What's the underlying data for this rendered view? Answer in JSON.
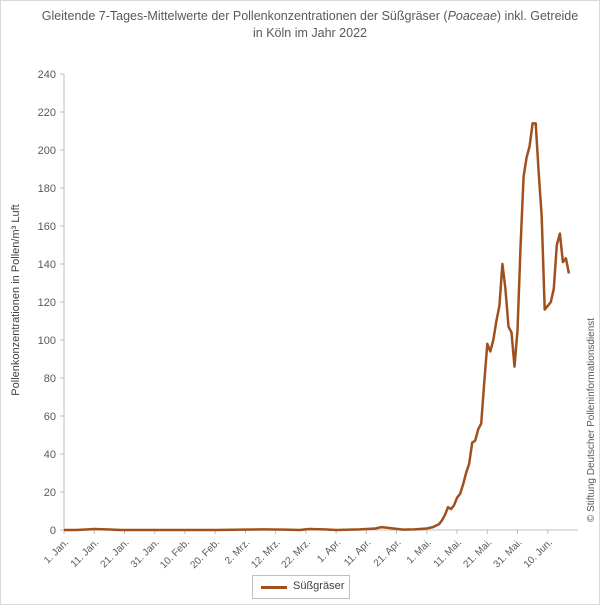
{
  "chart_data": {
    "type": "line",
    "title_line1": "Gleitende 7-Tages-Mittelwerte der Pollenkonzentrationen der Süßgräser (",
    "title_italic": "Poaceae",
    "title_line1_end": ") inkl. Getreide",
    "title_line2": "in Köln im Jahr 2022",
    "ylabel": "Pollenkonzentrationen in Pollen/m³ Luft",
    "credit": "© Stiftung Deutscher Polleninformationsdienst",
    "ylim": [
      0,
      240
    ],
    "yticks": [
      0,
      20,
      40,
      60,
      80,
      100,
      120,
      140,
      160,
      180,
      200,
      220,
      240
    ],
    "xlim": [
      "2022-01-01",
      "2022-06-20"
    ],
    "xticks": [
      {
        "date": "2022-01-01",
        "label": "1. Jan."
      },
      {
        "date": "2022-01-11",
        "label": "11. Jan."
      },
      {
        "date": "2022-01-21",
        "label": "21. Jan."
      },
      {
        "date": "2022-01-31",
        "label": "31. Jan."
      },
      {
        "date": "2022-02-10",
        "label": "10. Feb."
      },
      {
        "date": "2022-02-20",
        "label": "20. Feb."
      },
      {
        "date": "2022-03-02",
        "label": "2. Mrz."
      },
      {
        "date": "2022-03-12",
        "label": "12. Mrz."
      },
      {
        "date": "2022-03-22",
        "label": "22. Mrz."
      },
      {
        "date": "2022-04-01",
        "label": "1. Apr."
      },
      {
        "date": "2022-04-11",
        "label": "11. Apr."
      },
      {
        "date": "2022-04-21",
        "label": "21. Apr."
      },
      {
        "date": "2022-05-01",
        "label": "1. Mai."
      },
      {
        "date": "2022-05-11",
        "label": "11. Mai."
      },
      {
        "date": "2022-05-21",
        "label": "21. Mai."
      },
      {
        "date": "2022-05-31",
        "label": "31. Mai."
      },
      {
        "date": "2022-06-10",
        "label": "10. Jun."
      }
    ],
    "grid": false,
    "legend_position": "bottom-center",
    "series": [
      {
        "name": "Süßgräser",
        "color": "#a0501d",
        "points": [
          [
            "2022-01-01",
            0
          ],
          [
            "2022-01-05",
            0
          ],
          [
            "2022-01-09",
            0.3
          ],
          [
            "2022-01-11",
            0.5
          ],
          [
            "2022-01-15",
            0.3
          ],
          [
            "2022-01-20",
            0
          ],
          [
            "2022-01-31",
            0
          ],
          [
            "2022-02-20",
            0
          ],
          [
            "2022-03-01",
            0.2
          ],
          [
            "2022-03-08",
            0.3
          ],
          [
            "2022-03-15",
            0.2
          ],
          [
            "2022-03-20",
            0
          ],
          [
            "2022-03-23",
            0.5
          ],
          [
            "2022-03-28",
            0.3
          ],
          [
            "2022-04-01",
            0
          ],
          [
            "2022-04-09",
            0.3
          ],
          [
            "2022-04-14",
            0.8
          ],
          [
            "2022-04-16",
            1.5
          ],
          [
            "2022-04-19",
            1.0
          ],
          [
            "2022-04-23",
            0.2
          ],
          [
            "2022-04-27",
            0.3
          ],
          [
            "2022-05-01",
            0.8
          ],
          [
            "2022-05-03",
            1.5
          ],
          [
            "2022-05-05",
            3
          ],
          [
            "2022-05-06",
            5
          ],
          [
            "2022-05-07",
            8
          ],
          [
            "2022-05-08",
            12
          ],
          [
            "2022-05-09",
            11
          ],
          [
            "2022-05-10",
            13
          ],
          [
            "2022-05-11",
            17
          ],
          [
            "2022-05-12",
            19
          ],
          [
            "2022-05-13",
            24
          ],
          [
            "2022-05-14",
            30
          ],
          [
            "2022-05-15",
            35
          ],
          [
            "2022-05-16",
            46
          ],
          [
            "2022-05-17",
            47
          ],
          [
            "2022-05-18",
            53
          ],
          [
            "2022-05-19",
            56
          ],
          [
            "2022-05-20",
            78
          ],
          [
            "2022-05-21",
            98
          ],
          [
            "2022-05-22",
            94
          ],
          [
            "2022-05-23",
            100
          ],
          [
            "2022-05-24",
            110
          ],
          [
            "2022-05-25",
            118
          ],
          [
            "2022-05-26",
            140
          ],
          [
            "2022-05-27",
            127
          ],
          [
            "2022-05-28",
            107
          ],
          [
            "2022-05-29",
            104
          ],
          [
            "2022-05-30",
            86
          ],
          [
            "2022-05-31",
            105
          ],
          [
            "2022-06-01",
            150
          ],
          [
            "2022-06-02",
            186
          ],
          [
            "2022-06-03",
            196
          ],
          [
            "2022-06-04",
            202
          ],
          [
            "2022-06-05",
            214
          ],
          [
            "2022-06-06",
            214
          ],
          [
            "2022-06-07",
            188
          ],
          [
            "2022-06-08",
            165
          ],
          [
            "2022-06-09",
            116
          ],
          [
            "2022-06-10",
            118
          ],
          [
            "2022-06-11",
            120
          ],
          [
            "2022-06-12",
            127
          ],
          [
            "2022-06-13",
            150
          ],
          [
            "2022-06-14",
            156
          ],
          [
            "2022-06-15",
            141
          ],
          [
            "2022-06-16",
            143
          ],
          [
            "2022-06-17",
            135
          ]
        ]
      }
    ]
  }
}
